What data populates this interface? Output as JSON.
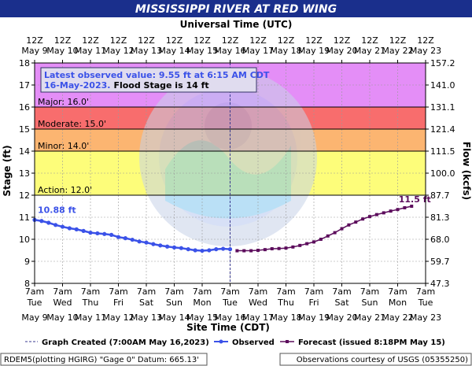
{
  "header": {
    "title": "MISSISSIPPI RIVER AT RED WING",
    "top_axis_title": "Universal Time (UTC)"
  },
  "footer": {
    "gage_info": "RDEM5(plotting HGIRG) \"Gage 0\" Datum: 665.13'",
    "courtesy": "Observations courtesy of USGS (05355250)"
  },
  "legend": {
    "graph_created": "Graph Created (7:00AM May 16,2023)",
    "observed": "Observed",
    "forecast": "Forecast (issued 8:18PM May 15)"
  },
  "latest_box": {
    "line1": "Latest observed value: 9.55 ft at 6:15 AM CDT",
    "line2_date": "16-May-2023.",
    "line2_flood": "Flood Stage is 14 ft"
  },
  "colors": {
    "title_bar": "#1a2f8c",
    "record": "#e48ef7",
    "major": "#f86d6d",
    "moderate": "#fcb571",
    "minor": "#fdfd7a",
    "observed": "#3b52e8",
    "forecast": "#5c0d5c",
    "legend_box": "#cfcfe8"
  },
  "chart_data": {
    "type": "line",
    "ylabel": "Stage (ft)",
    "y2label": "Flow (kcfs)",
    "xlabel_bottom": "Site Time (CDT)",
    "ylim": [
      8,
      18
    ],
    "grid": true,
    "x_day_labels_utc": [
      "12Z May 9",
      "12Z May 10",
      "12Z May 11",
      "12Z May 12",
      "12Z May 13",
      "12Z May 14",
      "12Z May 15",
      "12Z May 16",
      "12Z May 17",
      "12Z May 18",
      "12Z May 19",
      "12Z May 20",
      "12Z May 21",
      "12Z May 22",
      "12Z May 23"
    ],
    "x_tick_labels_local": [
      "7am Tue May 9",
      "7am Wed May 10",
      "7am Thu May 11",
      "7am Fri May 12",
      "7am Sat May 13",
      "7am Sun May 14",
      "7am Mon May 15",
      "7am Tue May 16",
      "7am Wed May 17",
      "7am Thu May 18",
      "7am Fri May 19",
      "7am Sat May 20",
      "7am Sun May 21",
      "7am Mon May 22",
      "7am Tue May 23"
    ],
    "x_tick_parts": [
      {
        "utc_time": "12Z",
        "utc_date": "May  9",
        "local_time": "7am",
        "local_day": "Tue",
        "local_date": "May  9"
      },
      {
        "utc_time": "12Z",
        "utc_date": "May 10",
        "local_time": "7am",
        "local_day": "Wed",
        "local_date": "May 10"
      },
      {
        "utc_time": "12Z",
        "utc_date": "May 11",
        "local_time": "7am",
        "local_day": "Thu",
        "local_date": "May 11"
      },
      {
        "utc_time": "12Z",
        "utc_date": "May 12",
        "local_time": "7am",
        "local_day": "Fri",
        "local_date": "May 12"
      },
      {
        "utc_time": "12Z",
        "utc_date": "May 13",
        "local_time": "7am",
        "local_day": "Sat",
        "local_date": "May 13"
      },
      {
        "utc_time": "12Z",
        "utc_date": "May 14",
        "local_time": "7am",
        "local_day": "Sun",
        "local_date": "May 14"
      },
      {
        "utc_time": "12Z",
        "utc_date": "May 15",
        "local_time": "7am",
        "local_day": "Mon",
        "local_date": "May 15"
      },
      {
        "utc_time": "12Z",
        "utc_date": "May 16",
        "local_time": "7am",
        "local_day": "Tue",
        "local_date": "May 16"
      },
      {
        "utc_time": "12Z",
        "utc_date": "May 17",
        "local_time": "7am",
        "local_day": "Wed",
        "local_date": "May 17"
      },
      {
        "utc_time": "12Z",
        "utc_date": "May 18",
        "local_time": "7am",
        "local_day": "Thu",
        "local_date": "May 18"
      },
      {
        "utc_time": "12Z",
        "utc_date": "May 19",
        "local_time": "7am",
        "local_day": "Fri",
        "local_date": "May 19"
      },
      {
        "utc_time": "12Z",
        "utc_date": "May 20",
        "local_time": "7am",
        "local_day": "Sat",
        "local_date": "May 20"
      },
      {
        "utc_time": "12Z",
        "utc_date": "May 21",
        "local_time": "7am",
        "local_day": "Sun",
        "local_date": "May 21"
      },
      {
        "utc_time": "12Z",
        "utc_date": "May 22",
        "local_time": "7am",
        "local_day": "Mon",
        "local_date": "May 22"
      },
      {
        "utc_time": "12Z",
        "utc_date": "May 23",
        "local_time": "7am",
        "local_day": "Tue",
        "local_date": "May 23"
      }
    ],
    "y_ticks": [
      8,
      9,
      10,
      11,
      12,
      13,
      14,
      15,
      16,
      17,
      18
    ],
    "y2_ticks": [
      "47.3",
      "59.7",
      "68.0",
      "81.3",
      "87.7",
      "100.0",
      "111.5",
      "121.4",
      "131.1",
      "141.0",
      "157.2"
    ],
    "flood_categories": [
      {
        "name": "Action",
        "label": "Action: 12.0'",
        "stage": 12.0
      },
      {
        "name": "Minor",
        "label": "Minor: 14.0'",
        "stage": 14.0
      },
      {
        "name": "Moderate",
        "label": "Moderate: 15.0'",
        "stage": 15.0
      },
      {
        "name": "Major",
        "label": "Major: 16.0'",
        "stage": 16.0
      }
    ],
    "graph_created_day": 7,
    "annotations": [
      {
        "text": "10.88 ft",
        "series": "observed"
      },
      {
        "text": "11.5 ft",
        "series": "forecast"
      }
    ],
    "series": [
      {
        "name": "Observed",
        "x_days_since_may9_7am": [
          0,
          0.25,
          0.5,
          0.75,
          1,
          1.25,
          1.5,
          1.75,
          2,
          2.25,
          2.5,
          2.75,
          3,
          3.25,
          3.5,
          3.75,
          4,
          4.25,
          4.5,
          4.75,
          5,
          5.25,
          5.5,
          5.75,
          6,
          6.25,
          6.5,
          6.75,
          7
        ],
        "values": [
          10.88,
          10.83,
          10.75,
          10.65,
          10.57,
          10.5,
          10.45,
          10.38,
          10.3,
          10.27,
          10.24,
          10.2,
          10.1,
          10.05,
          9.98,
          9.9,
          9.85,
          9.78,
          9.72,
          9.67,
          9.63,
          9.6,
          9.55,
          9.5,
          9.48,
          9.5,
          9.55,
          9.57,
          9.55
        ]
      },
      {
        "name": "Forecast",
        "x_days_since_may9_7am": [
          7.25,
          7.5,
          7.75,
          8,
          8.25,
          8.5,
          8.75,
          9,
          9.25,
          9.5,
          9.75,
          10,
          10.25,
          10.5,
          10.75,
          11,
          11.25,
          11.5,
          11.75,
          12,
          12.25,
          12.5,
          12.75,
          13,
          13.25,
          13.5
        ],
        "values": [
          9.48,
          9.48,
          9.48,
          9.5,
          9.53,
          9.57,
          9.58,
          9.6,
          9.65,
          9.72,
          9.8,
          9.88,
          10.0,
          10.15,
          10.3,
          10.48,
          10.65,
          10.78,
          10.92,
          11.03,
          11.12,
          11.2,
          11.28,
          11.35,
          11.43,
          11.5
        ]
      }
    ]
  }
}
